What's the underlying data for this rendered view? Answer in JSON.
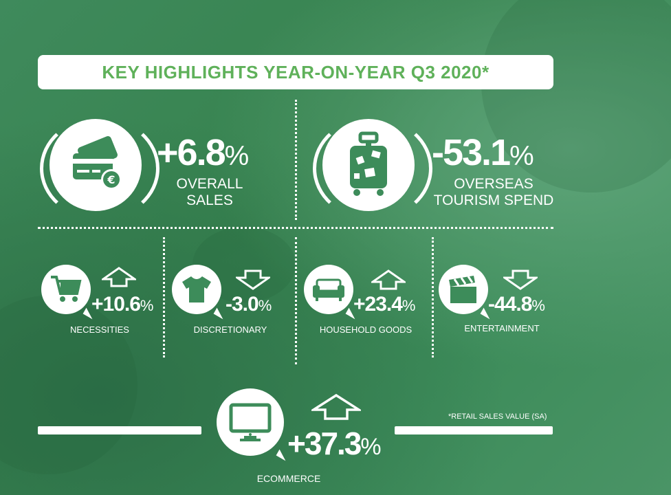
{
  "title": "KEY HIGHLIGHTS YEAR-ON-YEAR Q3 2020*",
  "overall_sales": {
    "value": "+6.8",
    "unit": "%",
    "label_line1": "OVERALL",
    "label_line2": "SALES",
    "icon": "credit-card-euro-icon"
  },
  "overseas": {
    "value": "-53.1",
    "unit": "%",
    "label_line1": "OVERSEAS",
    "label_line2": "TOURISM SPEND",
    "icon": "luggage-icon"
  },
  "necessities": {
    "value": "+10.6",
    "unit": "%",
    "label": "NECESSITIES",
    "icon": "shopping-cart-icon",
    "trend": "up"
  },
  "discretionary": {
    "value": "-3.0",
    "unit": "%",
    "label": "DISCRETIONARY",
    "icon": "t-shirt-icon",
    "trend": "down"
  },
  "household": {
    "value": "+23.4",
    "unit": "%",
    "label": "HOUSEHOLD GOODS",
    "icon": "sofa-icon",
    "trend": "up"
  },
  "entertainment": {
    "value": "-44.8",
    "unit": "%",
    "label": "ENTERTAINMENT",
    "icon": "clapperboard-icon",
    "trend": "down"
  },
  "ecommerce": {
    "value": "+37.3",
    "unit": "%",
    "label": "ECOMMERCE",
    "icon": "monitor-icon",
    "trend": "up"
  },
  "footnote": "*RETAIL SALES VALUE (SA)",
  "colors": {
    "accent": "#5fb15a",
    "icon_green": "#3d8c5a",
    "background": "#3f8a5c"
  }
}
